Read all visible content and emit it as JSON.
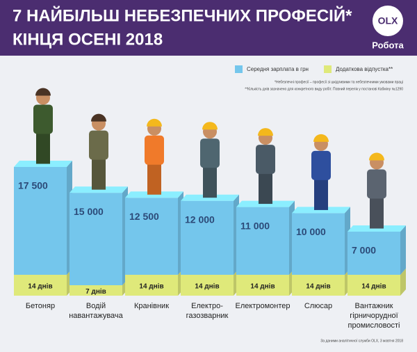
{
  "chart_data": {
    "type": "bar3d",
    "title": [
      "7 НАЙБІЛЬШ НЕБЕЗПЕЧНИХ ПРОФЕСІЙ*",
      "КІНЦЯ ОСЕНІ 2018"
    ],
    "logo": {
      "text": "OLX",
      "subtitle": "Робота"
    },
    "categories": [
      [
        "Бетоняр"
      ],
      [
        "Водій",
        "навантажувача"
      ],
      [
        "Кранівник"
      ],
      [
        "Електро-",
        "газозварник"
      ],
      [
        "Електромонтер"
      ],
      [
        "Слюсар"
      ],
      [
        "Вантажник",
        "гірничорудної",
        "промисловості"
      ]
    ],
    "series": [
      {
        "name": "Середня зарплата в грн",
        "color": "#74c6ec",
        "values": [
          17500,
          15000,
          12500,
          12000,
          11000,
          10000,
          7000
        ],
        "value_labels": [
          "17 500",
          "15 000",
          "12 500",
          "12 000",
          "11 000",
          "10 000",
          "7 000"
        ]
      },
      {
        "name": "Додаткова відпустка**",
        "color": "#dfe97a",
        "values": [
          14,
          7,
          14,
          14,
          14,
          14,
          14
        ],
        "value_labels": [
          "14 днів",
          "7 днів",
          "14 днів",
          "14 днів",
          "14 днів",
          "14 днів",
          "14 днів"
        ]
      }
    ],
    "notes": [
      "*Небезпечні професії – професії зі шкідливими та небезпечними умовами праці",
      "**Кількість днів зазначено для конкретного виду робіт. Повний перелік у постанові Кабміну №1290"
    ],
    "source": "За даними аналітичної служби OLX, 3 жовтня 2018"
  }
}
